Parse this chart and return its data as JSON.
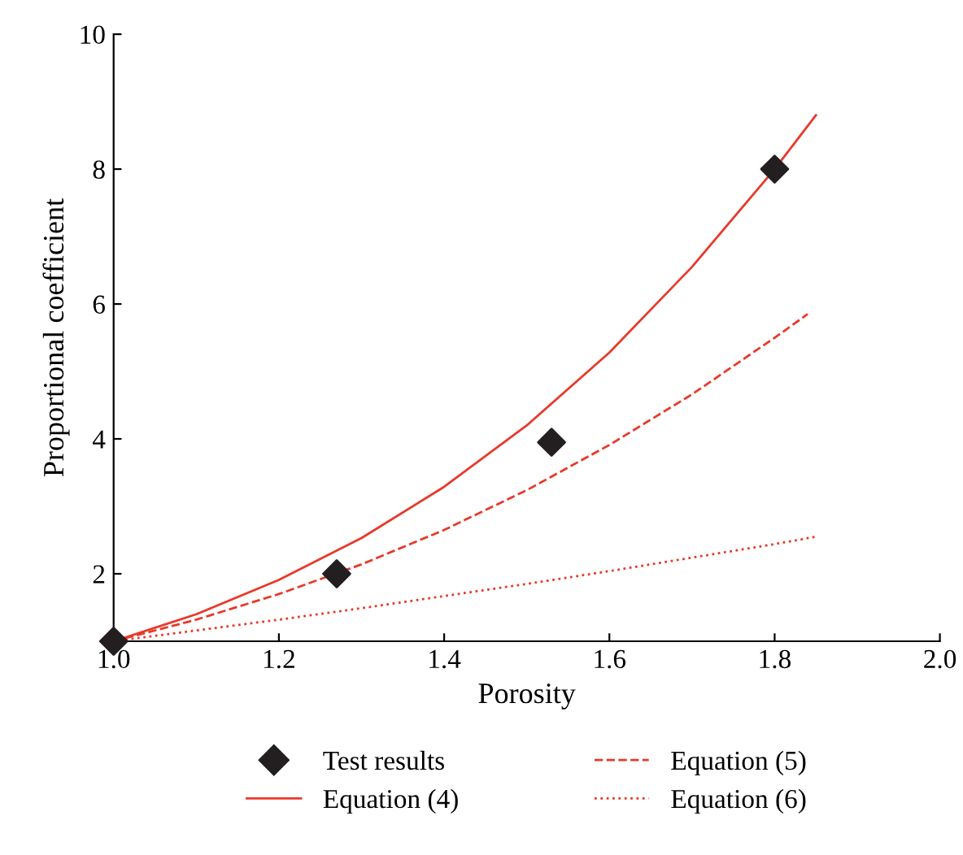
{
  "chart_data": {
    "type": "line",
    "xlabel": "Porosity",
    "ylabel": "Proportional coefficient",
    "xlim": [
      1.0,
      2.0
    ],
    "xticks": [
      {
        "value": 1.0,
        "label": "1.0"
      },
      {
        "value": 1.2,
        "label": "1.2"
      },
      {
        "value": 1.4,
        "label": "1.4"
      },
      {
        "value": 1.6,
        "label": "1.6"
      },
      {
        "value": 1.8,
        "label": "1.8"
      },
      {
        "value": 2.0,
        "label": "2.0"
      }
    ],
    "ylim": [
      1,
      10
    ],
    "yticks": [
      2,
      4,
      6,
      8,
      10
    ],
    "grid": false,
    "legend": "bottom",
    "series": [
      {
        "name": "Test results",
        "type": "scatter",
        "marker": "diamond",
        "color": "#231f20",
        "x": [
          1.0,
          1.27,
          1.53,
          1.8
        ],
        "values": [
          1.0,
          2.0,
          3.95,
          8.0
        ]
      },
      {
        "name": "Equation (4)",
        "line_style": "solid",
        "color": "#e8392a",
        "x": [
          1.0,
          1.1,
          1.2,
          1.3,
          1.4,
          1.5,
          1.6,
          1.7,
          1.8,
          1.85
        ],
        "values": [
          1.0,
          1.4,
          1.91,
          2.53,
          3.29,
          4.2,
          5.28,
          6.55,
          8.0,
          8.8
        ]
      },
      {
        "name": "Equation (5)",
        "line_style": "dashed",
        "color": "#e8392a",
        "x": [
          1.0,
          1.1,
          1.2,
          1.3,
          1.4,
          1.5,
          1.6,
          1.7,
          1.8,
          1.84
        ],
        "values": [
          1.0,
          1.32,
          1.7,
          2.14,
          2.65,
          3.24,
          3.91,
          4.66,
          5.5,
          5.85
        ]
      },
      {
        "name": "Equation (6)",
        "line_style": "dotted",
        "color": "#e8392a",
        "x": [
          1.0,
          1.1,
          1.2,
          1.3,
          1.4,
          1.5,
          1.6,
          1.7,
          1.8,
          1.85
        ],
        "values": [
          1.0,
          1.16,
          1.32,
          1.49,
          1.67,
          1.85,
          2.04,
          2.24,
          2.44,
          2.55
        ]
      }
    ]
  }
}
